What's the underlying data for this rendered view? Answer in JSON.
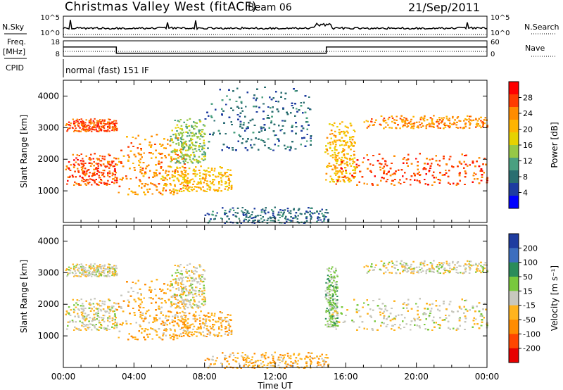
{
  "header": {
    "station": "Christmas Valley West (fitACF)",
    "beam": "Beam 06",
    "date": "21/Sep/2011"
  },
  "summary": {
    "nsky_label": "N.Sky",
    "nsky_ticks": [
      "10^5",
      "10^0"
    ],
    "nsearch_label": "N.Search",
    "nsearch_ticks": [
      "10^5",
      "10^0"
    ],
    "freq_label": "Freq.",
    "freq_unit": "[MHz]",
    "freq_ticks": [
      "18",
      "8"
    ],
    "nave_label": "Nave",
    "nave_ticks": [
      "60",
      "0"
    ],
    "cpid_label": "CPID",
    "cpid_value": "normal (fast) 151 IF",
    "freq_series": {
      "x_hours": [
        0,
        3.0,
        3.0,
        14.9,
        14.9,
        24
      ],
      "values_mhz": [
        14,
        14,
        10,
        10,
        14,
        14
      ]
    }
  },
  "chart_data": [
    {
      "type": "heatmap",
      "name": "power",
      "ylabel": "Slant Range [km]",
      "ylim": [
        0,
        4500
      ],
      "yticks": [
        "1000",
        "2000",
        "3000",
        "4000"
      ],
      "xlim": [
        0,
        24
      ],
      "colorbar": {
        "label": "Power [dB]",
        "ticks": [
          "28",
          "24",
          "20",
          "16",
          "12",
          "8",
          "4"
        ],
        "colors": [
          "#ff0000",
          "#ff3c00",
          "#ff8c00",
          "#ffb400",
          "#e6d200",
          "#96c846",
          "#4aa080",
          "#2a6e70",
          "#1e3ca0",
          "#0000ff"
        ]
      },
      "regions": [
        {
          "start_h": 0.1,
          "end_h": 3.0,
          "range_km": [
            1200,
            2200
          ],
          "power_db": 28
        },
        {
          "start_h": 0.1,
          "end_h": 3.0,
          "range_km": [
            2900,
            3300
          ],
          "power_db": 28
        },
        {
          "start_h": 3.0,
          "end_h": 7.0,
          "range_km": [
            900,
            2800
          ],
          "power_db": 24
        },
        {
          "start_h": 6.0,
          "end_h": 8.0,
          "range_km": [
            1900,
            3300
          ],
          "power_db": 16
        },
        {
          "start_h": 5.5,
          "end_h": 9.5,
          "range_km": [
            1000,
            1800
          ],
          "power_db": 20
        },
        {
          "start_h": 8.0,
          "end_h": 14.0,
          "range_km": [
            2300,
            4300
          ],
          "power_db": 6
        },
        {
          "start_h": 8.0,
          "end_h": 15.0,
          "range_km": [
            0,
            500
          ],
          "power_db": 8
        },
        {
          "start_h": 14.8,
          "end_h": 16.5,
          "range_km": [
            1300,
            3200
          ],
          "power_db": 20
        },
        {
          "start_h": 15.2,
          "end_h": 24.0,
          "range_km": [
            1200,
            2200
          ],
          "power_db": 28
        },
        {
          "start_h": 17.0,
          "end_h": 24.0,
          "range_km": [
            3000,
            3400
          ],
          "power_db": 26
        }
      ]
    },
    {
      "type": "heatmap",
      "name": "velocity",
      "ylabel": "Slant Range [km]",
      "ylim": [
        0,
        4500
      ],
      "yticks": [
        "1000",
        "2000",
        "3000",
        "4000"
      ],
      "xlim": [
        0,
        24
      ],
      "xticks": [
        "00:00",
        "04:00",
        "08:00",
        "12:00",
        "16:00",
        "20:00",
        "00:00"
      ],
      "xlabel": "Time UT",
      "colorbar": {
        "label": "Velocity [m s⁻¹]",
        "ticks": [
          "200",
          "100",
          "50",
          "15",
          "-15",
          "-50",
          "-100",
          "-200"
        ],
        "colors": [
          "#1e3ca0",
          "#3c6ebe",
          "#2a8c5a",
          "#78c83c",
          "#c8c8be",
          "#ffb41e",
          "#ff8c00",
          "#ff4600",
          "#e60000"
        ]
      },
      "regions": [
        {
          "start_h": 0.1,
          "end_h": 3.0,
          "range_km": [
            1200,
            2200
          ],
          "velocity_ms": 0
        },
        {
          "start_h": 0.1,
          "end_h": 3.0,
          "range_km": [
            2900,
            3300
          ],
          "velocity_ms": 0
        },
        {
          "start_h": 3.0,
          "end_h": 7.0,
          "range_km": [
            900,
            2800
          ],
          "velocity_ms": -40
        },
        {
          "start_h": 5.5,
          "end_h": 9.5,
          "range_km": [
            1000,
            1800
          ],
          "velocity_ms": -60
        },
        {
          "start_h": 6.0,
          "end_h": 8.0,
          "range_km": [
            1900,
            3300
          ],
          "velocity_ms": 0
        },
        {
          "start_h": 8.0,
          "end_h": 15.0,
          "range_km": [
            0,
            500
          ],
          "velocity_ms": -80
        },
        {
          "start_h": 14.8,
          "end_h": 15.5,
          "range_km": [
            1300,
            3200
          ],
          "velocity_ms": 40
        },
        {
          "start_h": 15.2,
          "end_h": 24.0,
          "range_km": [
            1200,
            2200
          ],
          "velocity_ms": 0
        },
        {
          "start_h": 17.0,
          "end_h": 24.0,
          "range_km": [
            3000,
            3400
          ],
          "velocity_ms": 0
        }
      ]
    }
  ]
}
